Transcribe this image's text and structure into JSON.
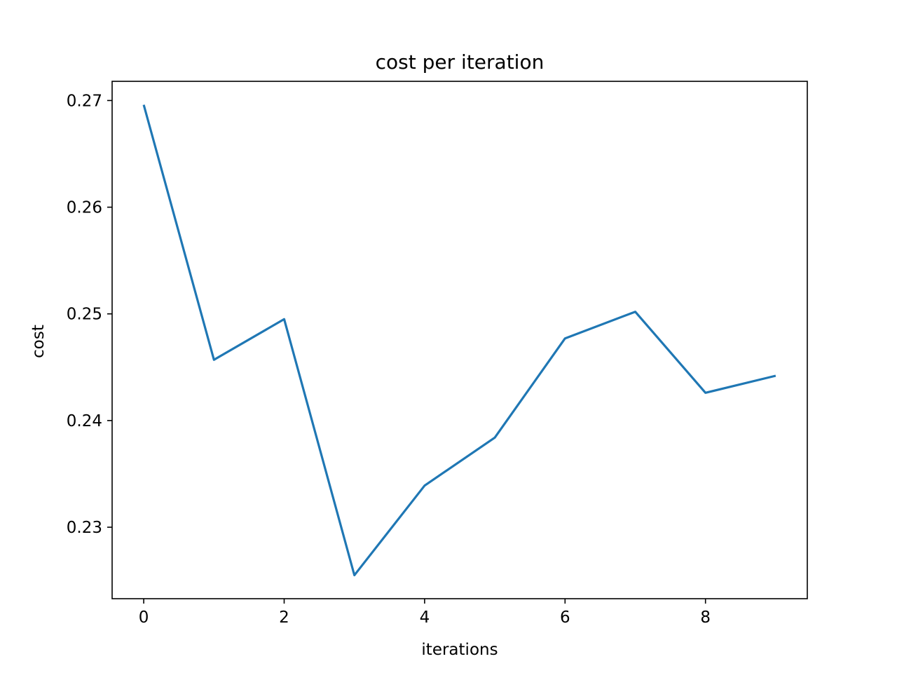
{
  "chart_data": {
    "type": "line",
    "title": "cost per iteration",
    "xlabel": "iterations",
    "ylabel": "cost",
    "xlim": [
      -0.45,
      9.45
    ],
    "ylim": [
      0.2233,
      0.2718
    ],
    "xticks": [
      0,
      2,
      4,
      6,
      8
    ],
    "xtick_labels": [
      "0",
      "2",
      "4",
      "6",
      "8"
    ],
    "yticks": [
      0.23,
      0.24,
      0.25,
      0.26,
      0.27
    ],
    "ytick_labels": [
      "0.23",
      "0.24",
      "0.25",
      "0.26",
      "0.27"
    ],
    "grid": false,
    "series": [
      {
        "color": "#1f77b4",
        "x": [
          0,
          1,
          2,
          3,
          4,
          5,
          6,
          7,
          8,
          9
        ],
        "y": [
          0.2696,
          0.2457,
          0.2495,
          0.2255,
          0.2339,
          0.2384,
          0.2477,
          0.2502,
          0.2426,
          0.2442
        ]
      }
    ]
  }
}
